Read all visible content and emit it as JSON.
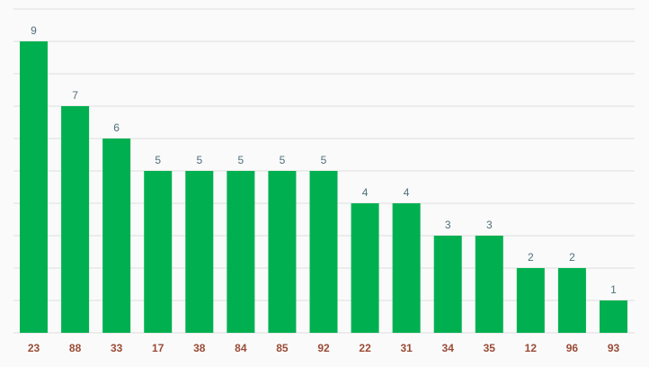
{
  "chart_data": {
    "type": "bar",
    "categories": [
      "23",
      "88",
      "33",
      "17",
      "38",
      "84",
      "85",
      "92",
      "22",
      "31",
      "34",
      "35",
      "12",
      "96",
      "93"
    ],
    "values": [
      9,
      7,
      6,
      5,
      5,
      5,
      5,
      5,
      4,
      4,
      3,
      3,
      2,
      2,
      1
    ],
    "title": "",
    "xlabel": "",
    "ylabel": "",
    "ylim": [
      0,
      10
    ],
    "grid": true,
    "legend": "none",
    "colors": {
      "bar": "#00b050",
      "value_label": "#4f6f7a",
      "category_label": "#9a4b36",
      "grid": "#dddddd",
      "background": "#fafafa"
    }
  }
}
